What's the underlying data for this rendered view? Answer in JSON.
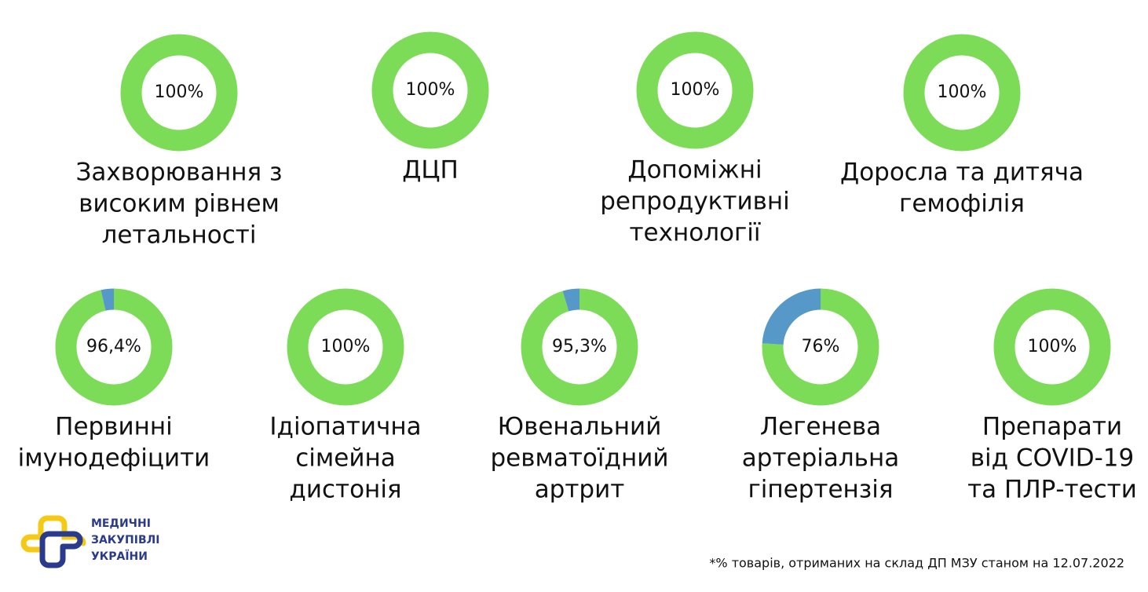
{
  "chart_data": [
    {
      "type": "donut",
      "title": [
        "Захворювання з",
        "високим рівнем",
        "летальності"
      ],
      "values": [
        100,
        0
      ],
      "value_labels": [
        "100%",
        null
      ],
      "colors": [
        "#7ddc57",
        "#5699c8"
      ]
    },
    {
      "type": "donut",
      "title": [
        "ДЦП"
      ],
      "values": [
        100,
        0
      ],
      "value_labels": [
        "100%",
        null
      ],
      "colors": [
        "#7ddc57",
        "#5699c8"
      ]
    },
    {
      "type": "donut",
      "title": [
        "Допоміжні",
        "репродуктивні",
        "технології"
      ],
      "values": [
        100,
        0
      ],
      "value_labels": [
        "100%",
        null
      ],
      "colors": [
        "#7ddc57",
        "#5699c8"
      ]
    },
    {
      "type": "donut",
      "title": [
        "Доросла та дитяча",
        "гемофілія"
      ],
      "values": [
        100,
        0
      ],
      "value_labels": [
        "100%",
        null
      ],
      "colors": [
        "#7ddc57",
        "#5699c8"
      ]
    },
    {
      "type": "donut",
      "title": [
        "Первинні",
        "імунодефіцити"
      ],
      "values": [
        96.4,
        3.6
      ],
      "value_labels": [
        "96,4%",
        null
      ],
      "colors": [
        "#7ddc57",
        "#5699c8"
      ]
    },
    {
      "type": "donut",
      "title": [
        "Ідіопатична",
        "сімейна",
        "дистонія"
      ],
      "values": [
        100,
        0
      ],
      "value_labels": [
        "100%",
        null
      ],
      "colors": [
        "#7ddc57",
        "#5699c8"
      ]
    },
    {
      "type": "donut",
      "title": [
        "Ювенальний",
        "ревматоїдний",
        "артрит"
      ],
      "values": [
        95.3,
        4.7
      ],
      "value_labels": [
        "95,3%",
        null
      ],
      "colors": [
        "#7ddc57",
        "#5699c8"
      ]
    },
    {
      "type": "donut",
      "title": [
        "Легенева",
        "артеріальна",
        "гіпертензія"
      ],
      "values": [
        76,
        24
      ],
      "value_labels": [
        "76%",
        null
      ],
      "colors": [
        "#7ddc57",
        "#5699c8"
      ]
    },
    {
      "type": "donut",
      "title": [
        "Препарати",
        "від COVID-19",
        "та ПЛР-тести"
      ],
      "values": [
        100,
        0
      ],
      "value_labels": [
        "100%",
        null
      ],
      "colors": [
        "#7ddc57",
        "#5699c8"
      ]
    }
  ],
  "footnote": "*% товарів, отриманих на склад ДП МЗУ станом на 12.07.2022",
  "logo": [
    "МЕДИЧНІ",
    "ЗАКУПІВЛІ",
    "УКРАЇНИ"
  ]
}
